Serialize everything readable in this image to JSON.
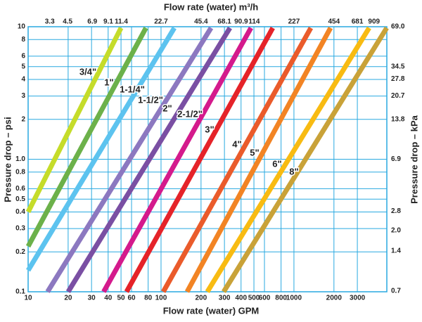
{
  "chart_data": {
    "type": "line",
    "title": "Flow rate (water) m³/h",
    "xlabel": "Flow rate (water) GPM",
    "ylabel": "Pressure drop – psi",
    "y2label": "Pressure drop – kPa",
    "xscale": "log",
    "yscale": "log",
    "grid": true,
    "grid_color": "#29a9e0",
    "xlim": [
      10,
      5000
    ],
    "xticks": [
      10,
      20,
      30,
      40,
      50,
      60,
      80,
      100,
      200,
      300,
      400,
      500,
      600,
      800,
      1000,
      2000,
      3000
    ],
    "x2lim": [
      2.27,
      1135
    ],
    "x2ticks": [
      3.3,
      4.5,
      6.9,
      9.1,
      11.4,
      22.7,
      45.4,
      68.1,
      90.9,
      114,
      227,
      454,
      681,
      909
    ],
    "ylim": [
      0.1,
      10
    ],
    "yticks": [
      0.1,
      0.2,
      0.3,
      0.4,
      0.5,
      0.6,
      0.8,
      {
        "value": 1,
        "label": "1.0"
      },
      2,
      3,
      4,
      5,
      6,
      8,
      10
    ],
    "y2lim": [
      0.6895,
      68.95
    ],
    "y2ticks": [
      0.7,
      1.4,
      {
        "value": 2,
        "label": "2.0"
      },
      2.8,
      6.9,
      13.8,
      20.7,
      27.8,
      34.5,
      {
        "value": 69,
        "label": "69.0"
      }
    ],
    "series": [
      {
        "name": "3/4\"",
        "color": "#c5dc2a",
        "x": [
          10,
          50
        ],
        "values": [
          0.4,
          9.8
        ]
      },
      {
        "name": "1\"",
        "color": "#6cb14a",
        "x": [
          10,
          77
        ],
        "values": [
          0.22,
          9.8
        ]
      },
      {
        "name": "1-1/4\"",
        "color": "#5cc3ef",
        "x": [
          10,
          126
        ],
        "values": [
          0.145,
          9.8
        ]
      },
      {
        "name": "1-1/2\"",
        "color": "#8c78c0",
        "x": [
          14,
          238
        ],
        "values": [
          0.1,
          9.8
        ]
      },
      {
        "name": "2\"",
        "color": "#7a4fa3",
        "x": [
          20,
          330
        ],
        "values": [
          0.1,
          9.8
        ]
      },
      {
        "name": "2-1/2\"",
        "color": "#d41a8c",
        "x": [
          37,
          475
        ],
        "values": [
          0.1,
          9.8
        ]
      },
      {
        "name": "3\"",
        "color": "#e52329",
        "x": [
          55,
          693
        ],
        "values": [
          0.1,
          9.8
        ]
      },
      {
        "name": "4\"",
        "color": "#ea5b2b",
        "x": [
          104,
          1340
        ],
        "values": [
          0.1,
          9.8
        ]
      },
      {
        "name": "5\"",
        "color": "#f28424",
        "x": [
          157,
          1885
        ],
        "values": [
          0.1,
          9.8
        ]
      },
      {
        "name": "6\"",
        "color": "#f8bb12",
        "x": [
          223,
          3680
        ],
        "values": [
          0.1,
          9.8
        ]
      },
      {
        "name": "8\"",
        "color": "#c9a238",
        "x": [
          296,
          4990
        ],
        "values": [
          0.1,
          9.8
        ]
      }
    ]
  }
}
